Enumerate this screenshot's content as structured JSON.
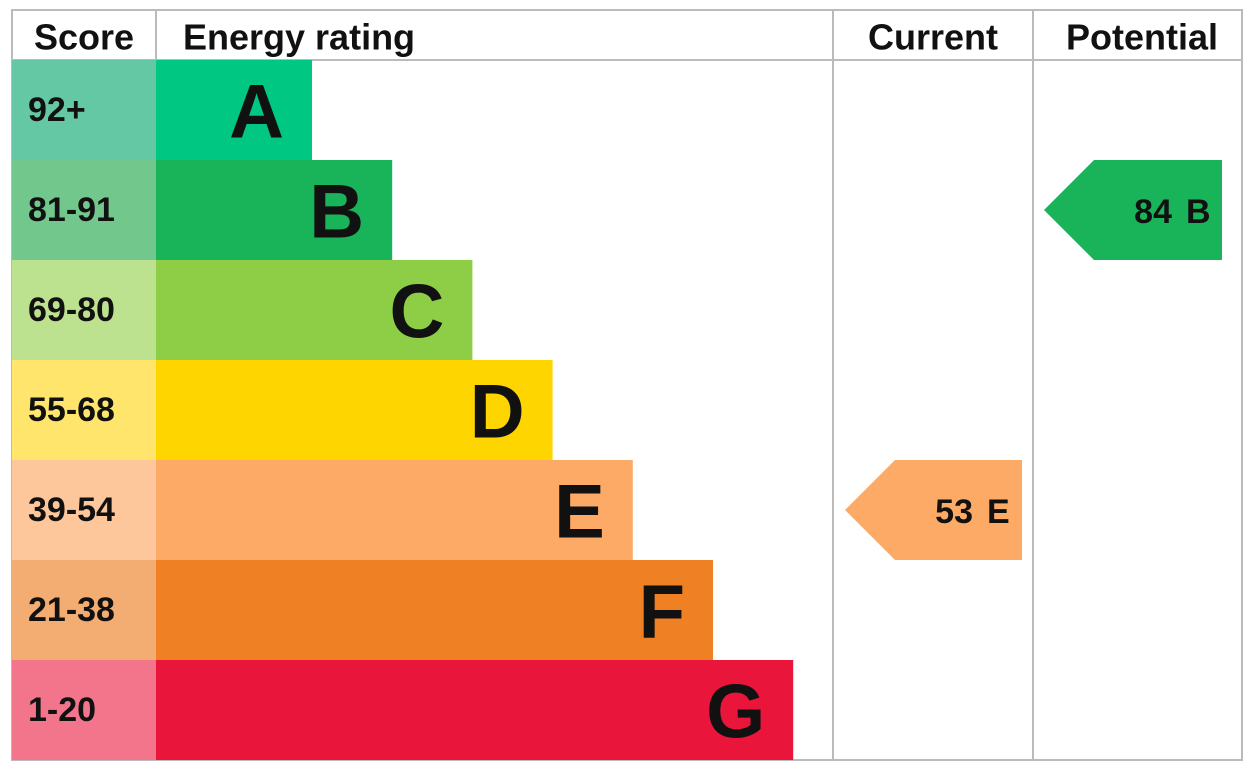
{
  "chart_data": {
    "type": "energy-rating",
    "headers": {
      "score": "Score",
      "rating": "Energy rating",
      "current": "Current",
      "potential": "Potential"
    },
    "bands": [
      {
        "score": "92+",
        "letter": "A",
        "color": "#00c781",
        "score_color": "#64c8a4"
      },
      {
        "score": "81-91",
        "letter": "B",
        "color": "#19b459",
        "score_color": "#72c88c"
      },
      {
        "score": "69-80",
        "letter": "C",
        "color": "#8dce46",
        "score_color": "#bce18f"
      },
      {
        "score": "55-68",
        "letter": "D",
        "color": "#ffd500",
        "score_color": "#ffe56b"
      },
      {
        "score": "39-54",
        "letter": "E",
        "color": "#fcaa65",
        "score_color": "#fdc69b"
      },
      {
        "score": "21-38",
        "letter": "F",
        "color": "#ef8023",
        "score_color": "#f3ad72"
      },
      {
        "score": "1-20",
        "letter": "G",
        "color": "#e9153b",
        "score_color": "#f2758b"
      }
    ],
    "current": {
      "value": 53,
      "rating": "E"
    },
    "potential": {
      "value": 84,
      "rating": "B"
    }
  }
}
